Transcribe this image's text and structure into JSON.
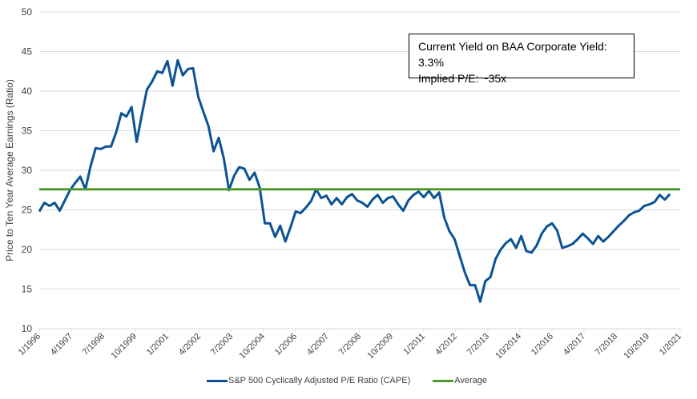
{
  "chart_data": {
    "type": "line",
    "title": "",
    "xlabel": "",
    "ylabel": "Price to Ten Year Average Earnings (Ratio)",
    "ylim": [
      10,
      50
    ],
    "yticks": [
      10,
      15,
      20,
      25,
      30,
      35,
      40,
      45,
      50
    ],
    "grid": true,
    "xlim": [
      "1/1996",
      "1/2021"
    ],
    "xticks": [
      "1/1996",
      "4/1997",
      "7/1998",
      "10/1999",
      "1/2001",
      "4/2002",
      "7/2003",
      "10/2004",
      "1/2006",
      "4/2007",
      "7/2008",
      "10/2009",
      "1/2011",
      "4/2012",
      "7/2013",
      "10/2014",
      "1/2016",
      "4/2017",
      "7/2018",
      "10/2019",
      "1/2021"
    ],
    "legend_position": "bottom",
    "annotation": {
      "line1": "Current Yield on BAA Corporate Yield: 3.3%",
      "line2": "Implied P/E: ~35x"
    },
    "series": [
      {
        "name": "S&P 500 Cyclically Adjusted P/E Ratio (CAPE)",
        "color": "#0b5394",
        "x_years": [
          1996.0,
          1996.2,
          1996.4,
          1996.6,
          1996.8,
          1997.0,
          1997.2,
          1997.4,
          1997.6,
          1997.8,
          1998.0,
          1998.2,
          1998.4,
          1998.6,
          1998.8,
          1999.0,
          1999.2,
          1999.4,
          1999.6,
          1999.8,
          2000.0,
          2000.2,
          2000.4,
          2000.6,
          2000.8,
          2001.0,
          2001.2,
          2001.4,
          2001.6,
          2001.8,
          2002.0,
          2002.2,
          2002.4,
          2002.6,
          2002.8,
          2003.0,
          2003.2,
          2003.4,
          2003.6,
          2003.8,
          2004.0,
          2004.2,
          2004.4,
          2004.6,
          2004.8,
          2005.0,
          2005.2,
          2005.4,
          2005.6,
          2005.8,
          2006.0,
          2006.2,
          2006.4,
          2006.6,
          2006.8,
          2007.0,
          2007.2,
          2007.4,
          2007.6,
          2007.8,
          2008.0,
          2008.2,
          2008.4,
          2008.6,
          2008.8,
          2009.0,
          2009.2,
          2009.4,
          2009.6,
          2009.8,
          2010.0,
          2010.2,
          2010.4,
          2010.6,
          2010.8,
          2011.0,
          2011.2,
          2011.4,
          2011.6,
          2011.8,
          2012.0,
          2012.2,
          2012.4,
          2012.6,
          2012.8,
          2013.0,
          2013.2,
          2013.4,
          2013.6,
          2013.8,
          2014.0,
          2014.2,
          2014.4,
          2014.6,
          2014.8,
          2015.0,
          2015.2,
          2015.4,
          2015.6,
          2015.8,
          2016.0,
          2016.2,
          2016.4,
          2016.6,
          2016.8,
          2017.0,
          2017.2,
          2017.4,
          2017.6,
          2017.8,
          2018.0,
          2018.2,
          2018.4,
          2018.6,
          2018.8,
          2019.0,
          2019.2,
          2019.4,
          2019.6,
          2019.8,
          2020.0,
          2020.2,
          2020.4,
          2020.6,
          2020.8,
          2021.0
        ],
        "values": [
          24.8,
          25.9,
          25.5,
          25.9,
          24.9,
          26.2,
          27.5,
          28.4,
          29.2,
          27.6,
          30.5,
          32.8,
          32.7,
          33.0,
          33.0,
          34.8,
          37.2,
          36.8,
          38.0,
          33.6,
          37.0,
          40.2,
          41.2,
          42.5,
          42.3,
          43.8,
          40.7,
          43.9,
          42.0,
          42.8,
          42.9,
          39.3,
          37.4,
          35.6,
          32.4,
          34.1,
          31.5,
          27.5,
          29.3,
          30.4,
          30.2,
          28.8,
          29.7,
          27.8,
          23.3,
          23.3,
          21.6,
          23.0,
          21.0,
          22.8,
          24.8,
          24.6,
          25.3,
          26.1,
          27.6,
          26.5,
          26.8,
          25.7,
          26.5,
          25.7,
          26.6,
          27.0,
          26.2,
          25.9,
          25.4,
          26.3,
          26.9,
          25.9,
          26.5,
          26.7,
          25.7,
          24.9,
          26.2,
          26.9,
          27.3,
          26.6,
          27.4,
          26.5,
          27.2,
          24.0,
          22.3,
          21.3,
          19.2,
          17.1,
          15.5,
          15.5,
          13.4,
          16.0,
          16.5,
          18.8,
          20.0,
          20.8,
          21.3,
          20.2,
          21.7,
          19.8,
          19.6,
          20.5,
          22.0,
          22.9,
          23.3,
          22.4,
          20.2,
          20.4,
          20.7,
          21.3,
          22.0,
          21.4,
          20.7,
          21.7,
          21.0,
          21.6,
          22.3,
          23.0,
          23.6,
          24.3,
          24.7,
          24.9,
          25.5,
          25.7,
          26.0,
          26.9,
          26.3,
          27.0
        ]
      },
      {
        "name": "Average",
        "color": "#4e9a2e",
        "constant": 27.6
      }
    ]
  }
}
